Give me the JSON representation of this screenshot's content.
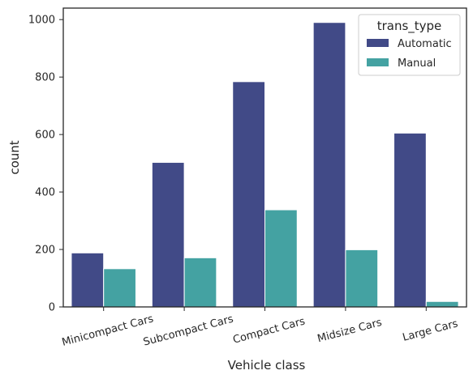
{
  "chart_data": {
    "type": "bar",
    "categories": [
      "Minicompact Cars",
      "Subcompact Cars",
      "Compact Cars",
      "Midsize Cars",
      "Large Cars"
    ],
    "series": [
      {
        "name": "Automatic",
        "values": [
          188,
          503,
          784,
          990,
          605
        ],
        "color": "#414a87"
      },
      {
        "name": "Manual",
        "values": [
          133,
          171,
          338,
          199,
          19
        ],
        "color": "#44a2a2"
      }
    ],
    "xlabel": "Vehicle class",
    "ylabel": "count",
    "ylim": [
      0,
      1040
    ],
    "yticks": [
      0,
      200,
      400,
      600,
      800,
      1000
    ],
    "legend": {
      "title": "trans_type",
      "placement": "top-right"
    },
    "grid": false
  }
}
